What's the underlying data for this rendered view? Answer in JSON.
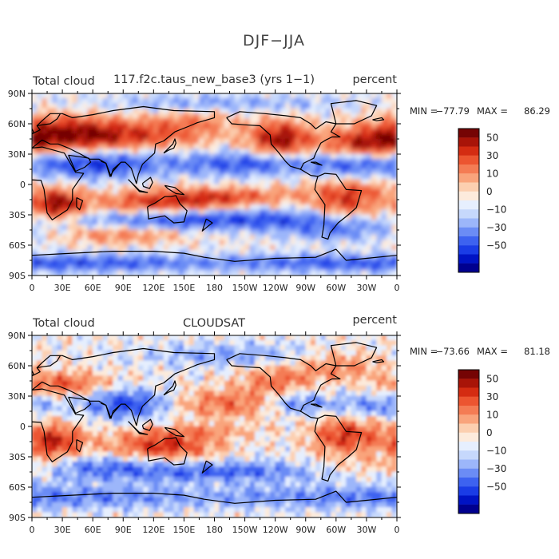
{
  "title": "DJF−JJA",
  "colors": {
    "palette": [
      "#00008f",
      "#0013c4",
      "#1a3ce6",
      "#3d62f0",
      "#6b8cf5",
      "#9cb6fa",
      "#c6d8fc",
      "#e6effe",
      "#fdebdc",
      "#fccfb0",
      "#f9a47c",
      "#f47c54",
      "#ec5530",
      "#d42c12",
      "#a81408",
      "#750404"
    ],
    "coast": "#000000",
    "frame": "#000000"
  },
  "colorbar": {
    "labels": [
      "50",
      "30",
      "10",
      "0",
      "−10",
      "−30",
      "−50"
    ],
    "label_levels": [
      50,
      30,
      10,
      0,
      -10,
      -30,
      -50
    ],
    "levels": [
      -70,
      -60,
      -50,
      -40,
      -30,
      -20,
      -10,
      -5,
      0,
      5,
      10,
      20,
      30,
      40,
      50,
      60
    ]
  },
  "axes": {
    "lat_labels": [
      "90N",
      "60N",
      "30N",
      "0",
      "30S",
      "60S",
      "90S"
    ],
    "lat_values": [
      90,
      60,
      30,
      0,
      -30,
      -60,
      -90
    ],
    "lon_labels": [
      "0",
      "30E",
      "60E",
      "90E",
      "120E",
      "150E",
      "180",
      "150W",
      "120W",
      "90W",
      "60W",
      "30W",
      "0"
    ],
    "lon_values": [
      0,
      30,
      60,
      90,
      120,
      150,
      180,
      210,
      240,
      270,
      300,
      330,
      360
    ]
  },
  "panels": [
    {
      "left_title": "Total cloud",
      "center_title": "117.f2c.taus_new_base3 (yrs 1−1)",
      "right_title": "percent",
      "min_label": "MIN =",
      "min_value": "−77.79",
      "max_label": "MAX =",
      "max_value": "86.29",
      "min": -77.79,
      "max": 86.29
    },
    {
      "left_title": "Total cloud",
      "center_title": "CLOUDSAT",
      "right_title": "percent",
      "min_label": "MIN =",
      "min_value": "−73.66",
      "max_label": "MAX =",
      "max_value": "81.18",
      "min": -73.66,
      "max": 81.18
    }
  ]
}
